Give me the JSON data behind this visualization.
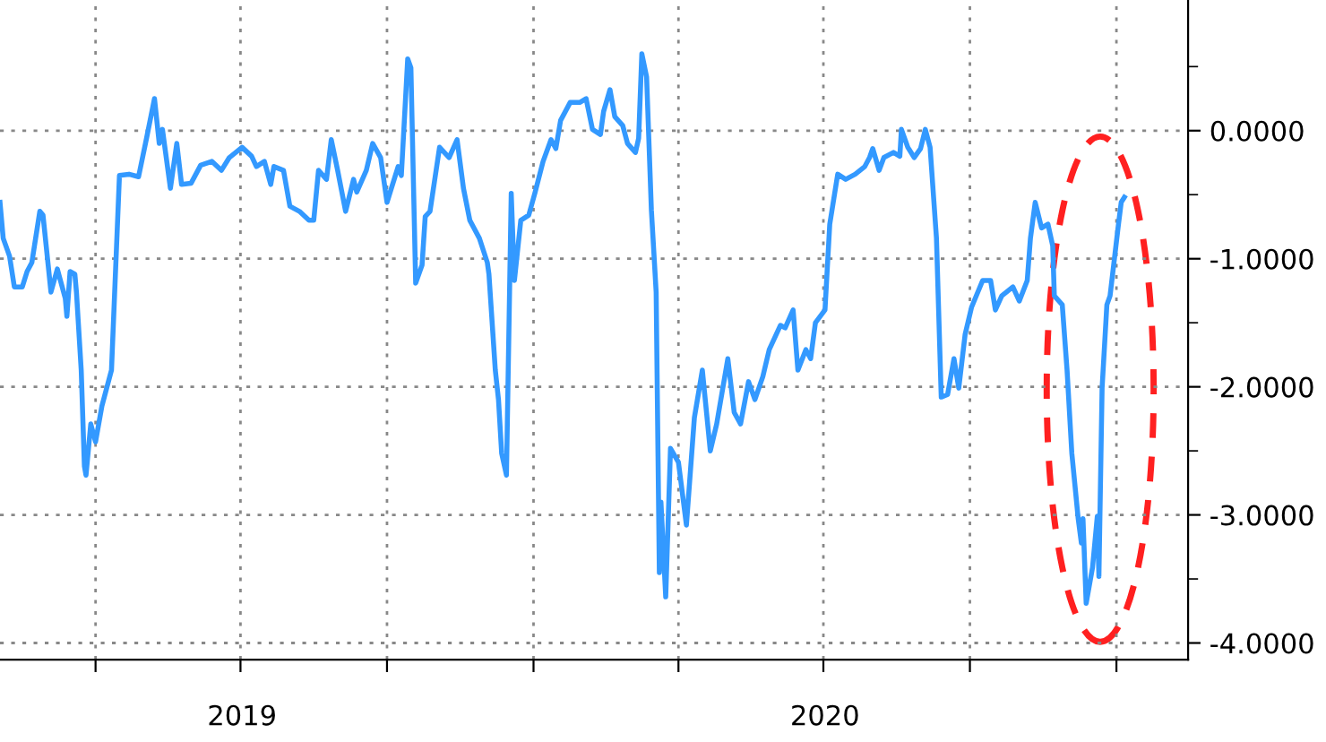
{
  "chart_data": {
    "type": "line",
    "x": [
      "2019-01-31",
      "2019-02-02",
      "2019-02-06",
      "2019-02-09",
      "2019-02-14",
      "2019-02-17",
      "2019-02-20",
      "2019-02-25",
      "2019-02-27",
      "2019-03-04",
      "2019-03-08",
      "2019-03-13",
      "2019-03-14",
      "2019-03-16",
      "2019-03-19",
      "2019-03-20",
      "2019-03-23",
      "2019-03-25",
      "2019-03-26",
      "2019-03-29",
      "2019-04-01",
      "2019-04-05",
      "2019-04-11",
      "2019-04-16",
      "2019-04-22",
      "2019-04-28",
      "2019-05-03",
      "2019-05-08",
      "2019-05-11",
      "2019-05-13",
      "2019-05-18",
      "2019-05-22",
      "2019-05-25",
      "2019-05-31",
      "2019-06-06",
      "2019-06-13",
      "2019-06-19",
      "2019-06-24",
      "2019-07-02",
      "2019-07-08",
      "2019-07-11",
      "2019-07-16",
      "2019-07-20",
      "2019-07-22",
      "2019-07-28",
      "2019-08-01",
      "2019-08-07",
      "2019-08-13",
      "2019-08-16",
      "2019-08-19",
      "2019-08-24",
      "2019-08-27",
      "2019-08-31",
      "2019-09-05",
      "2019-09-10",
      "2019-09-12",
      "2019-09-18",
      "2019-09-22",
      "2019-09-27",
      "2019-10-01",
      "2019-10-03",
      "2019-10-08",
      "2019-10-10",
      "2019-10-14",
      "2019-10-16",
      "2019-10-19",
      "2019-10-23",
      "2019-10-25",
      "2019-10-28",
      "2019-11-03",
      "2019-11-09",
      "2019-11-14",
      "2019-11-18",
      "2019-11-22",
      "2019-11-28",
      "2019-12-03",
      "2019-12-04",
      "2019-12-08",
      "2019-12-10",
      "2019-12-12",
      "2019-12-15",
      "2019-12-18",
      "2019-12-20",
      "2019-12-24",
      "2019-12-29",
      "2020-01-02",
      "2020-01-07",
      "2020-01-12",
      "2020-01-15",
      "2020-01-18",
      "2020-01-24",
      "2020-01-30",
      "2020-02-03",
      "2020-02-07",
      "2020-02-12",
      "2020-02-14",
      "2020-02-18",
      "2020-02-21",
      "2020-02-26",
      "2020-02-29",
      "2020-03-05",
      "2020-03-07",
      "2020-03-09",
      "2020-03-12",
      "2020-03-15",
      "2020-03-18",
      "2020-03-20",
      "2020-03-21",
      "2020-03-24",
      "2020-03-27",
      "2020-04-01",
      "2020-04-06",
      "2020-04-11",
      "2020-04-16",
      "2020-04-21",
      "2020-04-25",
      "2020-05-02",
      "2020-05-06",
      "2020-05-10",
      "2020-05-15",
      "2020-05-19",
      "2020-05-24",
      "2020-05-28",
      "2020-06-04",
      "2020-06-07",
      "2020-06-12",
      "2020-06-15",
      "2020-06-20",
      "2020-06-23",
      "2020-06-26",
      "2020-07-02",
      "2020-07-05",
      "2020-07-10",
      "2020-07-15",
      "2020-07-21",
      "2020-07-27",
      "2020-07-30",
      "2020-08-01",
      "2020-08-05",
      "2020-08-08",
      "2020-08-14",
      "2020-08-18",
      "2020-08-19",
      "2020-08-23",
      "2020-08-27",
      "2020-08-31",
      "2020-09-03",
      "2020-09-06",
      "2020-09-10",
      "2020-09-13",
      "2020-09-17",
      "2020-09-21",
      "2020-09-24",
      "2020-09-28",
      "2020-10-02",
      "2020-10-09",
      "2020-10-14",
      "2020-10-17",
      "2020-10-21",
      "2020-10-28",
      "2020-11-01",
      "2020-11-06",
      "2020-11-08",
      "2020-11-11",
      "2020-11-15",
      "2020-11-19",
      "2020-11-22",
      "2020-11-23",
      "2020-11-28",
      "2020-12-01",
      "2020-12-04",
      "2020-12-08",
      "2020-12-10",
      "2020-12-11",
      "2020-12-13",
      "2020-12-17",
      "2020-12-20",
      "2020-12-21",
      "2020-12-23",
      "2020-12-26",
      "2020-12-28",
      "2021-01-02",
      "2021-01-04",
      "2021-01-06"
    ],
    "series": [
      {
        "color": "#3399ff",
        "values": [
          -0.56,
          -0.84,
          -0.98,
          -1.22,
          -1.22,
          -1.1,
          -1.03,
          -0.63,
          -0.66,
          -1.26,
          -1.08,
          -1.31,
          -1.45,
          -1.1,
          -1.12,
          -1.26,
          -1.87,
          -2.62,
          -2.69,
          -2.29,
          -2.43,
          -2.15,
          -1.87,
          -0.35,
          -0.34,
          -0.36,
          -0.06,
          0.25,
          -0.1,
          0.01,
          -0.45,
          -0.1,
          -0.42,
          -0.41,
          -0.27,
          -0.24,
          -0.31,
          -0.21,
          -0.13,
          -0.2,
          -0.28,
          -0.24,
          -0.42,
          -0.28,
          -0.31,
          -0.59,
          -0.63,
          -0.7,
          -0.7,
          -0.31,
          -0.38,
          -0.07,
          -0.31,
          -0.63,
          -0.38,
          -0.48,
          -0.31,
          -0.1,
          -0.21,
          -0.56,
          -0.48,
          -0.28,
          -0.35,
          0.56,
          0.49,
          -1.19,
          -1.05,
          -0.67,
          -0.63,
          -0.13,
          -0.21,
          -0.07,
          -0.45,
          -0.7,
          -0.84,
          -1.03,
          -1.12,
          -1.87,
          -2.1,
          -2.52,
          -2.69,
          -0.49,
          -1.17,
          -0.7,
          -0.66,
          -0.48,
          -0.24,
          -0.07,
          -0.14,
          0.08,
          0.22,
          0.22,
          0.25,
          0.01,
          -0.03,
          0.15,
          0.32,
          0.11,
          0.04,
          -0.1,
          -0.17,
          -0.06,
          0.6,
          0.42,
          -0.62,
          -1.26,
          -3.45,
          -2.9,
          -3.64,
          -2.48,
          -2.59,
          -3.08,
          -2.24,
          -1.87,
          -2.5,
          -2.29,
          -1.78,
          -2.2,
          -2.29,
          -1.96,
          -2.1,
          -1.92,
          -1.71,
          -1.52,
          -1.54,
          -1.4,
          -1.87,
          -1.71,
          -1.78,
          -1.5,
          -1.4,
          -0.73,
          -0.34,
          -0.38,
          -0.34,
          -0.28,
          -0.21,
          -0.14,
          -0.31,
          -0.21,
          -0.17,
          -0.2,
          0.01,
          -0.13,
          -0.21,
          -0.14,
          0.01,
          -0.13,
          -0.84,
          -2.08,
          -2.06,
          -1.78,
          -2.01,
          -1.59,
          -1.38,
          -1.17,
          -1.17,
          -1.4,
          -1.29,
          -1.22,
          -1.33,
          -1.17,
          -0.84,
          -0.56,
          -0.76,
          -0.73,
          -0.9,
          -1.29,
          -1.36,
          -1.87,
          -2.52,
          -3.03,
          -3.22,
          -3.03,
          -3.69,
          -3.41,
          -3.01,
          -3.48,
          -2.01,
          -1.36,
          -1.29,
          -0.76,
          -0.56,
          -0.52
        ]
      }
    ],
    "xlim": [
      "2019-01-31",
      "2021-02-15"
    ],
    "xticks": [
      {
        "value": "2019-04-01",
        "label": null
      },
      {
        "value": "2019-07-01",
        "label": null
      },
      {
        "value": "2019-07-02",
        "label": "2019"
      },
      {
        "value": "2019-10-01",
        "label": null
      },
      {
        "value": "2020-01-01",
        "label": null
      },
      {
        "value": "2020-04-01",
        "label": null
      },
      {
        "value": "2020-07-01",
        "label": null
      },
      {
        "value": "2020-07-02",
        "label": "2020"
      },
      {
        "value": "2020-10-01",
        "label": null
      },
      {
        "value": "2021-01-01",
        "label": null
      }
    ],
    "ylim": [
      -4.13,
      1.02
    ],
    "yticks": [
      {
        "value": -4,
        "label": "-4.0000"
      },
      {
        "value": -3.5,
        "label": null
      },
      {
        "value": -3,
        "label": "-3.0000"
      },
      {
        "value": -2.5,
        "label": null
      },
      {
        "value": -2,
        "label": "-2.0000"
      },
      {
        "value": -1.5,
        "label": null
      },
      {
        "value": -1,
        "label": "-1.0000"
      },
      {
        "value": -0.5,
        "label": null
      },
      {
        "value": 0,
        "label": "0.0000"
      },
      {
        "value": 0.5,
        "label": null
      }
    ],
    "grid": true,
    "marker": "none",
    "line_style": "solid"
  }
}
